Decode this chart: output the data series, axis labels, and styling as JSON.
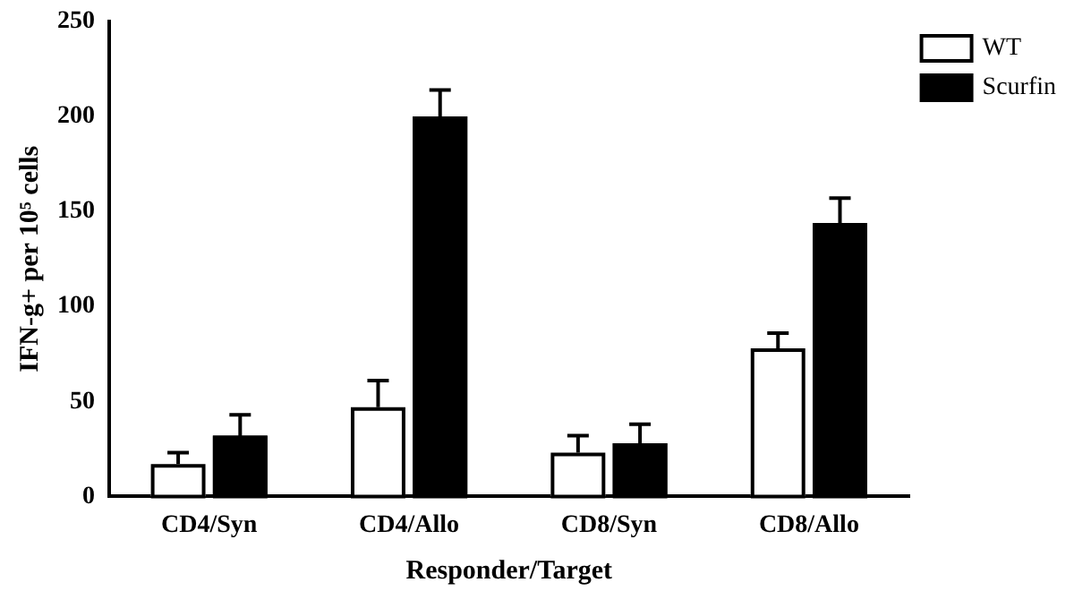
{
  "chart_data": {
    "type": "bar",
    "xlabel": "Responder/Target",
    "ylabel": "IFN-g+ per 10⁵ cells",
    "categories": [
      "CD4/Syn",
      "CD4/Allo",
      "CD8/Syn",
      "CD8/Allo"
    ],
    "series": [
      {
        "name": "WT",
        "color": "#ffffff",
        "values": [
          17,
          47,
          23,
          78
        ],
        "errors": [
          6,
          14,
          9,
          8
        ]
      },
      {
        "name": "Scurfin",
        "color": "#000000",
        "values": [
          32,
          200,
          28,
          144
        ],
        "errors": [
          11,
          14,
          10,
          13
        ]
      }
    ],
    "ylim": [
      0,
      250
    ],
    "yticks": [
      0,
      50,
      100,
      150,
      200,
      250
    ],
    "grid": false,
    "legend": "top right"
  }
}
